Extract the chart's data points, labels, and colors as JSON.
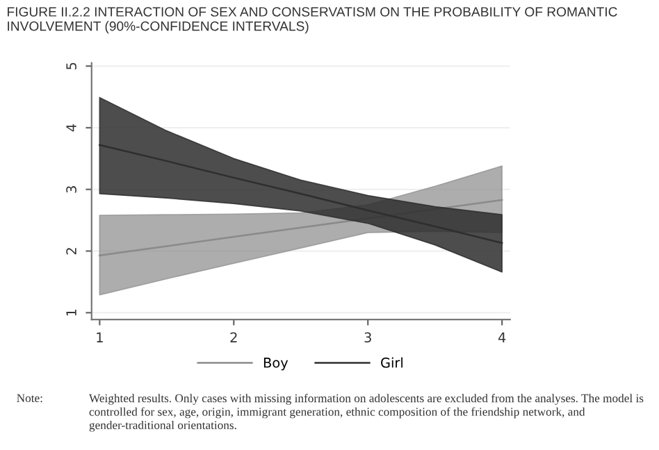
{
  "chart_data": {
    "type": "line",
    "title": "FIGURE II.2.2 INTERACTION OF SEX AND CONSERVATISM ON THE PROBABILITY OF ROMANTIC INVOLVEMENT (90%-CONFIDENCE INTERVALS)",
    "annotations": [
      "Note:",
      "Weighted results. Only cases with missing information on adolescents are excluded from the analyses. The model is controlled for sex, age, origin, immigrant generation, ethnic composition of the friendship network, and gender-traditional orientations."
    ],
    "x": [
      1,
      1.5,
      2,
      2.5,
      3,
      3.5,
      4
    ],
    "series": [
      {
        "name": "Boy",
        "color": "#8a8a8a",
        "values": [
          1.93,
          2.08,
          2.23,
          2.38,
          2.53,
          2.68,
          2.83
        ],
        "lower": [
          1.29,
          1.55,
          1.8,
          2.05,
          2.3,
          2.32,
          2.3
        ],
        "upper": [
          2.58,
          2.59,
          2.6,
          2.62,
          2.75,
          3.05,
          3.38
        ]
      },
      {
        "name": "Girl",
        "color": "#2e2e2e",
        "values": [
          3.72,
          3.46,
          3.19,
          2.93,
          2.66,
          2.4,
          2.13
        ],
        "lower": [
          2.93,
          2.86,
          2.77,
          2.65,
          2.45,
          2.1,
          1.66
        ],
        "upper": [
          4.49,
          3.95,
          3.5,
          3.15,
          2.9,
          2.72,
          2.59
        ]
      }
    ],
    "xlim": [
      0.94,
      4.06
    ],
    "ylim": [
      0.89,
      5.05
    ],
    "xticks": [
      1,
      2,
      3,
      4
    ],
    "yticks": [
      1,
      2,
      3,
      4,
      5
    ],
    "grid": "y",
    "legend": "bottom",
    "line_style": "solid",
    "marker": "none"
  }
}
